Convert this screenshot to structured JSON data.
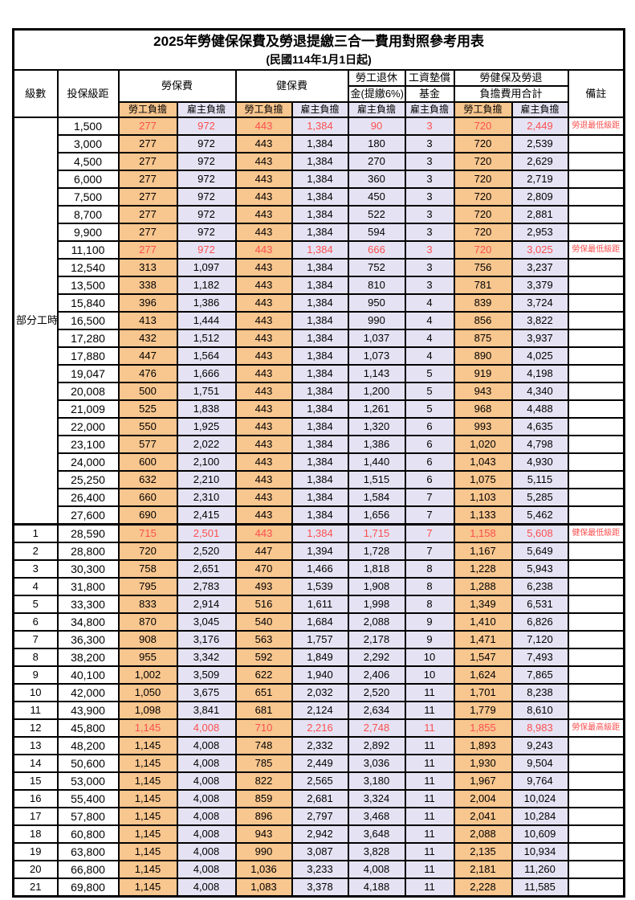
{
  "table": {
    "title": "2025年勞健保保費及勞退提繳三合一費用對照參考用表",
    "subtitle": "(民國114年1月1日起)",
    "headers": {
      "level": "級數",
      "salary": "投保級距",
      "labor": "勞保費",
      "health": "健保費",
      "pension_line1": "勞工退休",
      "pension_line2": "金(提繳6%)",
      "wage_fund_line1": "工資墊償",
      "wage_fund_line2": "基金",
      "total_line1": "勞健保及勞退",
      "total_line2": "負擔費用合計",
      "note": "備註",
      "worker": "勞工負擔",
      "employer": "雇主負擔"
    },
    "colors": {
      "worker_bg": "#F8C68F",
      "employer_bg": "#E5E3F3",
      "highlight_text": "#FB4F4F"
    },
    "group_label": "部分工時",
    "group_span": 23,
    "rows": [
      {
        "level": "",
        "salary": "1,500",
        "values": [
          "277",
          "972",
          "443",
          "1,384",
          "90",
          "3",
          "720",
          "2,449"
        ],
        "note": "勞退最低級距",
        "red": true,
        "section_start": false
      },
      {
        "level": "",
        "salary": "3,000",
        "values": [
          "277",
          "972",
          "443",
          "1,384",
          "180",
          "3",
          "720",
          "2,539"
        ],
        "note": "",
        "red": false,
        "section_start": false
      },
      {
        "level": "",
        "salary": "4,500",
        "values": [
          "277",
          "972",
          "443",
          "1,384",
          "270",
          "3",
          "720",
          "2,629"
        ],
        "note": "",
        "red": false,
        "section_start": false
      },
      {
        "level": "",
        "salary": "6,000",
        "values": [
          "277",
          "972",
          "443",
          "1,384",
          "360",
          "3",
          "720",
          "2,719"
        ],
        "note": "",
        "red": false,
        "section_start": false
      },
      {
        "level": "",
        "salary": "7,500",
        "values": [
          "277",
          "972",
          "443",
          "1,384",
          "450",
          "3",
          "720",
          "2,809"
        ],
        "note": "",
        "red": false,
        "section_start": false
      },
      {
        "level": "",
        "salary": "8,700",
        "values": [
          "277",
          "972",
          "443",
          "1,384",
          "522",
          "3",
          "720",
          "2,881"
        ],
        "note": "",
        "red": false,
        "section_start": false
      },
      {
        "level": "",
        "salary": "9,900",
        "values": [
          "277",
          "972",
          "443",
          "1,384",
          "594",
          "3",
          "720",
          "2,953"
        ],
        "note": "",
        "red": false,
        "section_start": false
      },
      {
        "level": "",
        "salary": "11,100",
        "values": [
          "277",
          "972",
          "443",
          "1,384",
          "666",
          "3",
          "720",
          "3,025"
        ],
        "note": "勞保最低級距",
        "red": true,
        "section_start": false
      },
      {
        "level": "",
        "salary": "12,540",
        "values": [
          "313",
          "1,097",
          "443",
          "1,384",
          "752",
          "3",
          "756",
          "3,237"
        ],
        "note": "",
        "red": false,
        "section_start": false
      },
      {
        "level": "",
        "salary": "13,500",
        "values": [
          "338",
          "1,182",
          "443",
          "1,384",
          "810",
          "3",
          "781",
          "3,379"
        ],
        "note": "",
        "red": false,
        "section_start": false
      },
      {
        "level": "",
        "salary": "15,840",
        "values": [
          "396",
          "1,386",
          "443",
          "1,384",
          "950",
          "4",
          "839",
          "3,724"
        ],
        "note": "",
        "red": false,
        "section_start": false
      },
      {
        "level": "",
        "salary": "16,500",
        "values": [
          "413",
          "1,444",
          "443",
          "1,384",
          "990",
          "4",
          "856",
          "3,822"
        ],
        "note": "",
        "red": false,
        "section_start": false
      },
      {
        "level": "",
        "salary": "17,280",
        "values": [
          "432",
          "1,512",
          "443",
          "1,384",
          "1,037",
          "4",
          "875",
          "3,937"
        ],
        "note": "",
        "red": false,
        "section_start": false
      },
      {
        "level": "",
        "salary": "17,880",
        "values": [
          "447",
          "1,564",
          "443",
          "1,384",
          "1,073",
          "4",
          "890",
          "4,025"
        ],
        "note": "",
        "red": false,
        "section_start": false
      },
      {
        "level": "",
        "salary": "19,047",
        "values": [
          "476",
          "1,666",
          "443",
          "1,384",
          "1,143",
          "5",
          "919",
          "4,198"
        ],
        "note": "",
        "red": false,
        "section_start": false
      },
      {
        "level": "",
        "salary": "20,008",
        "values": [
          "500",
          "1,751",
          "443",
          "1,384",
          "1,200",
          "5",
          "943",
          "4,340"
        ],
        "note": "",
        "red": false,
        "section_start": false
      },
      {
        "level": "",
        "salary": "21,009",
        "values": [
          "525",
          "1,838",
          "443",
          "1,384",
          "1,261",
          "5",
          "968",
          "4,488"
        ],
        "note": "",
        "red": false,
        "section_start": false
      },
      {
        "level": "",
        "salary": "22,000",
        "values": [
          "550",
          "1,925",
          "443",
          "1,384",
          "1,320",
          "6",
          "993",
          "4,635"
        ],
        "note": "",
        "red": false,
        "section_start": false
      },
      {
        "level": "",
        "salary": "23,100",
        "values": [
          "577",
          "2,022",
          "443",
          "1,384",
          "1,386",
          "6",
          "1,020",
          "4,798"
        ],
        "note": "",
        "red": false,
        "section_start": false
      },
      {
        "level": "",
        "salary": "24,000",
        "values": [
          "600",
          "2,100",
          "443",
          "1,384",
          "1,440",
          "6",
          "1,043",
          "4,930"
        ],
        "note": "",
        "red": false,
        "section_start": false
      },
      {
        "level": "",
        "salary": "25,250",
        "values": [
          "632",
          "2,210",
          "443",
          "1,384",
          "1,515",
          "6",
          "1,075",
          "5,115"
        ],
        "note": "",
        "red": false,
        "section_start": false
      },
      {
        "level": "",
        "salary": "26,400",
        "values": [
          "660",
          "2,310",
          "443",
          "1,384",
          "1,584",
          "7",
          "1,103",
          "5,285"
        ],
        "note": "",
        "red": false,
        "section_start": false
      },
      {
        "level": "",
        "salary": "27,600",
        "values": [
          "690",
          "2,415",
          "443",
          "1,384",
          "1,656",
          "7",
          "1,133",
          "5,462"
        ],
        "note": "",
        "red": false,
        "section_start": false
      },
      {
        "level": "1",
        "salary": "28,590",
        "values": [
          "715",
          "2,501",
          "443",
          "1,384",
          "1,715",
          "7",
          "1,158",
          "5,608"
        ],
        "note": "健保最低級距",
        "red": true,
        "section_start": true
      },
      {
        "level": "2",
        "salary": "28,800",
        "values": [
          "720",
          "2,520",
          "447",
          "1,394",
          "1,728",
          "7",
          "1,167",
          "5,649"
        ],
        "note": "",
        "red": false,
        "section_start": false
      },
      {
        "level": "3",
        "salary": "30,300",
        "values": [
          "758",
          "2,651",
          "470",
          "1,466",
          "1,818",
          "8",
          "1,228",
          "5,943"
        ],
        "note": "",
        "red": false,
        "section_start": false
      },
      {
        "level": "4",
        "salary": "31,800",
        "values": [
          "795",
          "2,783",
          "493",
          "1,539",
          "1,908",
          "8",
          "1,288",
          "6,238"
        ],
        "note": "",
        "red": false,
        "section_start": false
      },
      {
        "level": "5",
        "salary": "33,300",
        "values": [
          "833",
          "2,914",
          "516",
          "1,611",
          "1,998",
          "8",
          "1,349",
          "6,531"
        ],
        "note": "",
        "red": false,
        "section_start": false
      },
      {
        "level": "6",
        "salary": "34,800",
        "values": [
          "870",
          "3,045",
          "540",
          "1,684",
          "2,088",
          "9",
          "1,410",
          "6,826"
        ],
        "note": "",
        "red": false,
        "section_start": false
      },
      {
        "level": "7",
        "salary": "36,300",
        "values": [
          "908",
          "3,176",
          "563",
          "1,757",
          "2,178",
          "9",
          "1,471",
          "7,120"
        ],
        "note": "",
        "red": false,
        "section_start": false
      },
      {
        "level": "8",
        "salary": "38,200",
        "values": [
          "955",
          "3,342",
          "592",
          "1,849",
          "2,292",
          "10",
          "1,547",
          "7,493"
        ],
        "note": "",
        "red": false,
        "section_start": false
      },
      {
        "level": "9",
        "salary": "40,100",
        "values": [
          "1,002",
          "3,509",
          "622",
          "1,940",
          "2,406",
          "10",
          "1,624",
          "7,865"
        ],
        "note": "",
        "red": false,
        "section_start": false
      },
      {
        "level": "10",
        "salary": "42,000",
        "values": [
          "1,050",
          "3,675",
          "651",
          "2,032",
          "2,520",
          "11",
          "1,701",
          "8,238"
        ],
        "note": "",
        "red": false,
        "section_start": false
      },
      {
        "level": "11",
        "salary": "43,900",
        "values": [
          "1,098",
          "3,841",
          "681",
          "2,124",
          "2,634",
          "11",
          "1,779",
          "8,610"
        ],
        "note": "",
        "red": false,
        "section_start": false
      },
      {
        "level": "12",
        "salary": "45,800",
        "values": [
          "1,145",
          "4,008",
          "710",
          "2,216",
          "2,748",
          "11",
          "1,855",
          "8,983"
        ],
        "note": "勞保最高級距",
        "red": true,
        "section_start": false
      },
      {
        "level": "13",
        "salary": "48,200",
        "values": [
          "1,145",
          "4,008",
          "748",
          "2,332",
          "2,892",
          "11",
          "1,893",
          "9,243"
        ],
        "note": "",
        "red": false,
        "section_start": false
      },
      {
        "level": "14",
        "salary": "50,600",
        "values": [
          "1,145",
          "4,008",
          "785",
          "2,449",
          "3,036",
          "11",
          "1,930",
          "9,504"
        ],
        "note": "",
        "red": false,
        "section_start": false
      },
      {
        "level": "15",
        "salary": "53,000",
        "values": [
          "1,145",
          "4,008",
          "822",
          "2,565",
          "3,180",
          "11",
          "1,967",
          "9,764"
        ],
        "note": "",
        "red": false,
        "section_start": false
      },
      {
        "level": "16",
        "salary": "55,400",
        "values": [
          "1,145",
          "4,008",
          "859",
          "2,681",
          "3,324",
          "11",
          "2,004",
          "10,024"
        ],
        "note": "",
        "red": false,
        "section_start": false
      },
      {
        "level": "17",
        "salary": "57,800",
        "values": [
          "1,145",
          "4,008",
          "896",
          "2,797",
          "3,468",
          "11",
          "2,041",
          "10,284"
        ],
        "note": "",
        "red": false,
        "section_start": false
      },
      {
        "level": "18",
        "salary": "60,800",
        "values": [
          "1,145",
          "4,008",
          "943",
          "2,942",
          "3,648",
          "11",
          "2,088",
          "10,609"
        ],
        "note": "",
        "red": false,
        "section_start": false
      },
      {
        "level": "19",
        "salary": "63,800",
        "values": [
          "1,145",
          "4,008",
          "990",
          "3,087",
          "3,828",
          "11",
          "2,135",
          "10,934"
        ],
        "note": "",
        "red": false,
        "section_start": false
      },
      {
        "level": "20",
        "salary": "66,800",
        "values": [
          "1,145",
          "4,008",
          "1,036",
          "3,233",
          "4,008",
          "11",
          "2,181",
          "11,260"
        ],
        "note": "",
        "red": false,
        "section_start": false
      },
      {
        "level": "21",
        "salary": "69,800",
        "values": [
          "1,145",
          "4,008",
          "1,083",
          "3,378",
          "4,188",
          "11",
          "2,228",
          "11,585"
        ],
        "note": "",
        "red": false,
        "section_start": false
      }
    ]
  }
}
